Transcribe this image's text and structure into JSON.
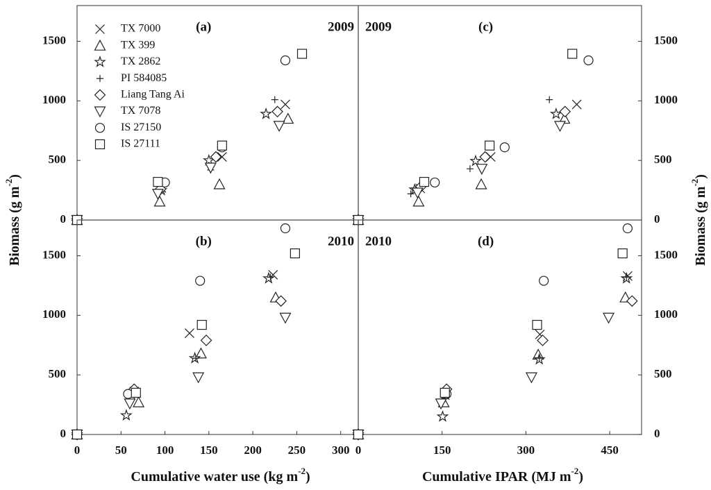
{
  "chart_data": [
    {
      "type": "scatter",
      "panel_label": "(a)",
      "year": "2009",
      "year_corner": "right",
      "ylabel": [
        "Biomass (g m",
        "-2",
        ")"
      ],
      "ytick_side": "left",
      "xlim": [
        0,
        320
      ],
      "ylim": [
        0,
        1800
      ],
      "yticks": [
        0,
        500,
        1000,
        1500
      ],
      "legend": "upper left",
      "series": [
        {
          "name": "TX 7000",
          "marker": "x",
          "x": [
            0,
            96,
            165,
            237
          ],
          "values": [
            0,
            270,
            530,
            970
          ]
        },
        {
          "name": "TX 399",
          "marker": "triangle",
          "x": [
            0,
            94,
            162,
            240
          ],
          "values": [
            0,
            155,
            300,
            850
          ]
        },
        {
          "name": "TX 2862",
          "marker": "star",
          "x": [
            0,
            96,
            150,
            215
          ],
          "values": [
            0,
            250,
            500,
            890
          ]
        },
        {
          "name": "PI 584085",
          "marker": "plus",
          "x": [
            0,
            95,
            152,
            225
          ],
          "values": [
            0,
            240,
            420,
            1010
          ]
        },
        {
          "name": "Liang Tang Ai",
          "marker": "diamond",
          "x": [
            0,
            95,
            158,
            228
          ],
          "values": [
            0,
            260,
            530,
            910
          ]
        },
        {
          "name": "TX 7078",
          "marker": "triangle-down",
          "x": [
            0,
            92,
            152,
            230
          ],
          "values": [
            0,
            220,
            440,
            790
          ]
        },
        {
          "name": "IS 27150",
          "marker": "circle",
          "x": [
            0,
            100,
            165,
            237
          ],
          "values": [
            0,
            315,
            610,
            1340
          ]
        },
        {
          "name": "IS 27111",
          "marker": "square",
          "x": [
            0,
            92,
            165,
            256
          ],
          "values": [
            0,
            320,
            625,
            1395
          ]
        }
      ]
    },
    {
      "type": "scatter",
      "panel_label": "(c)",
      "year": "2009",
      "year_corner": "left",
      "ylabel": [
        "Biomass (g m",
        "-2",
        ")"
      ],
      "ytick_side": "right",
      "xlim": [
        0,
        507
      ],
      "ylim": [
        0,
        1800
      ],
      "yticks": [
        0,
        500,
        1000,
        1500
      ],
      "series": [
        {
          "marker": "x",
          "x": [
            0,
            111,
            237,
            391
          ],
          "values": [
            0,
            265,
            530,
            970
          ]
        },
        {
          "marker": "triangle",
          "x": [
            0,
            108,
            220,
            369
          ],
          "values": [
            0,
            155,
            300,
            850
          ]
        },
        {
          "marker": "star",
          "x": [
            0,
            101,
            210,
            354
          ],
          "values": [
            0,
            255,
            495,
            890
          ]
        },
        {
          "marker": "plus",
          "x": [
            0,
            94,
            200,
            342
          ],
          "values": [
            0,
            220,
            430,
            1010
          ]
        },
        {
          "marker": "diamond",
          "x": [
            0,
            112,
            227,
            370
          ],
          "values": [
            0,
            280,
            530,
            910
          ]
        },
        {
          "marker": "triangle-down",
          "x": [
            0,
            106,
            221,
            361
          ],
          "values": [
            0,
            230,
            430,
            790
          ]
        },
        {
          "marker": "circle",
          "x": [
            0,
            137,
            262,
            412
          ],
          "values": [
            0,
            315,
            610,
            1340
          ]
        },
        {
          "marker": "square",
          "x": [
            0,
            118,
            235,
            383
          ],
          "values": [
            0,
            320,
            625,
            1395
          ]
        }
      ]
    },
    {
      "type": "scatter",
      "panel_label": "(b)",
      "year": "2010",
      "year_corner": "right",
      "xlabel": [
        "Cumulative water use (kg m",
        "-2",
        ")"
      ],
      "ytick_side": "left",
      "xlim": [
        0,
        320
      ],
      "ylim": [
        0,
        1800
      ],
      "xticks": [
        0,
        50,
        100,
        150,
        200,
        250,
        300
      ],
      "yticks": [
        0,
        500,
        1000,
        1500
      ],
      "series": [
        {
          "marker": "x",
          "x": [
            0,
            65,
            128,
            223
          ],
          "values": [
            0,
            360,
            850,
            1340
          ]
        },
        {
          "marker": "triangle",
          "x": [
            0,
            70,
            141,
            226
          ],
          "values": [
            0,
            270,
            680,
            1150
          ]
        },
        {
          "marker": "star",
          "x": [
            0,
            56,
            134,
            218
          ],
          "values": [
            0,
            160,
            640,
            1310
          ]
        },
        {
          "marker": "plus",
          "x": [
            0,
            65,
            135,
            220
          ],
          "values": [
            0,
            330,
            640,
            1320
          ]
        },
        {
          "marker": "diamond",
          "x": [
            0,
            65,
            147,
            232
          ],
          "values": [
            0,
            380,
            790,
            1120
          ]
        },
        {
          "marker": "triangle-down",
          "x": [
            0,
            60,
            138,
            237
          ],
          "values": [
            0,
            260,
            480,
            980
          ]
        },
        {
          "marker": "circle",
          "x": [
            0,
            58,
            140,
            237
          ],
          "values": [
            0,
            340,
            1290,
            1730
          ]
        },
        {
          "marker": "square",
          "x": [
            0,
            67,
            142,
            248
          ],
          "values": [
            0,
            350,
            920,
            1520
          ]
        }
      ]
    },
    {
      "type": "scatter",
      "panel_label": "(d)",
      "year": "2010",
      "year_corner": "left",
      "xlabel": [
        "Cumulative IPAR (MJ m",
        "-2",
        ")"
      ],
      "ytick_side": "right",
      "xlim": [
        0,
        507
      ],
      "ylim": [
        0,
        1800
      ],
      "xticks": [
        0,
        150,
        300,
        450
      ],
      "yticks": [
        0,
        500,
        1000,
        1500
      ],
      "series": [
        {
          "marker": "x",
          "x": [
            0,
            155,
            325,
            482
          ],
          "values": [
            0,
            330,
            840,
            1330
          ]
        },
        {
          "marker": "triangle",
          "x": [
            0,
            153,
            322,
            478
          ],
          "values": [
            0,
            270,
            670,
            1150
          ]
        },
        {
          "marker": "star",
          "x": [
            0,
            151,
            324,
            480
          ],
          "values": [
            0,
            150,
            630,
            1310
          ]
        },
        {
          "marker": "plus",
          "x": [
            0,
            155,
            324,
            480
          ],
          "values": [
            0,
            300,
            640,
            1320
          ]
        },
        {
          "marker": "diamond",
          "x": [
            0,
            158,
            330,
            490
          ],
          "values": [
            0,
            380,
            790,
            1120
          ]
        },
        {
          "marker": "triangle-down",
          "x": [
            0,
            148,
            310,
            448
          ],
          "values": [
            0,
            260,
            480,
            980
          ]
        },
        {
          "marker": "circle",
          "x": [
            0,
            158,
            332,
            482
          ],
          "values": [
            0,
            340,
            1290,
            1730
          ]
        },
        {
          "marker": "square",
          "x": [
            0,
            155,
            320,
            473
          ],
          "values": [
            0,
            350,
            920,
            1520
          ]
        }
      ]
    }
  ]
}
